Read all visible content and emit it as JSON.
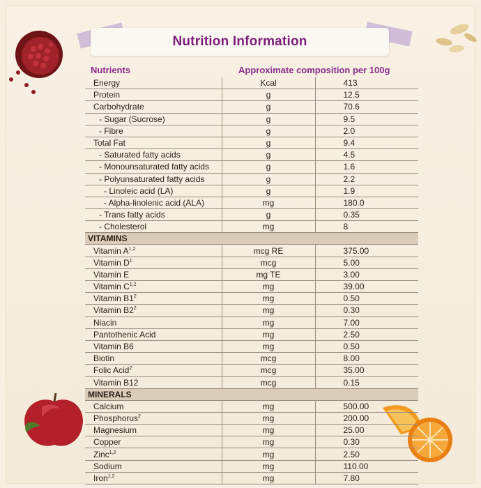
{
  "title": "Nutrition Information",
  "headers": {
    "nutrients": "Nutrients",
    "approx": "Approximate composition per 100g"
  },
  "rows": [
    {
      "name": "Energy",
      "sup": "",
      "unit": "Kcal",
      "value": "413",
      "indent": 0
    },
    {
      "name": "Protein",
      "sup": "",
      "unit": "g",
      "value": "12.5",
      "indent": 0
    },
    {
      "name": "Carbohydrate",
      "sup": "",
      "unit": "g",
      "value": "70.6",
      "indent": 0
    },
    {
      "name": "- Sugar (Sucrose)",
      "sup": "",
      "unit": "g",
      "value": "9.5",
      "indent": 1
    },
    {
      "name": "- Fibre",
      "sup": "",
      "unit": "g",
      "value": "2.0",
      "indent": 1
    },
    {
      "name": "Total Fat",
      "sup": "",
      "unit": "g",
      "value": "9.4",
      "indent": 0
    },
    {
      "name": "- Saturated fatty acids",
      "sup": "",
      "unit": "g",
      "value": "4.5",
      "indent": 1
    },
    {
      "name": "- Monounsaturated fatty acids",
      "sup": "",
      "unit": "g",
      "value": "1.6",
      "indent": 1
    },
    {
      "name": "- Polyunsaturated fatty acids",
      "sup": "",
      "unit": "g",
      "value": "2.2",
      "indent": 1
    },
    {
      "name": "- Linoleic acid (LA)",
      "sup": "",
      "unit": "g",
      "value": "1.9",
      "indent": 2
    },
    {
      "name": "- Alpha-linolenic acid (ALA)",
      "sup": "",
      "unit": "mg",
      "value": "180.0",
      "indent": 2
    },
    {
      "name": "- Trans fatty acids",
      "sup": "",
      "unit": "g",
      "value": "0.35",
      "indent": 1
    },
    {
      "name": "- Cholesterol",
      "sup": "",
      "unit": "mg",
      "value": "8",
      "indent": 1
    },
    {
      "section": "VITAMINS"
    },
    {
      "name": "Vitamin A",
      "sup": "1,2",
      "unit": "mcg RE",
      "value": "375.00",
      "indent": 0
    },
    {
      "name": "Vitamin D",
      "sup": "1",
      "unit": "mcg",
      "value": "5.00",
      "indent": 0
    },
    {
      "name": "Vitamin E",
      "sup": "",
      "unit": "mg TE",
      "value": "3.00",
      "indent": 0
    },
    {
      "name": "Vitamin C",
      "sup": "1,2",
      "unit": "mg",
      "value": "39.00",
      "indent": 0
    },
    {
      "name": "Vitamin B1",
      "sup": "2",
      "unit": "mg",
      "value": "0.50",
      "indent": 0
    },
    {
      "name": "Vitamin B2",
      "sup": "2",
      "unit": "mg",
      "value": "0.30",
      "indent": 0
    },
    {
      "name": "Niacin",
      "sup": "",
      "unit": "mg",
      "value": "7.00",
      "indent": 0
    },
    {
      "name": "Pantothenic Acid",
      "sup": "",
      "unit": "mg",
      "value": "2.50",
      "indent": 0
    },
    {
      "name": "Vitamin B6",
      "sup": "",
      "unit": "mg",
      "value": "0.50",
      "indent": 0
    },
    {
      "name": "Biotin",
      "sup": "",
      "unit": "mcg",
      "value": "8.00",
      "indent": 0
    },
    {
      "name": "Folic Acid",
      "sup": "2",
      "unit": "mcg",
      "value": "35.00",
      "indent": 0
    },
    {
      "name": "Vitamin B12",
      "sup": "",
      "unit": "mcg",
      "value": "0.15",
      "indent": 0
    },
    {
      "section": "MINERALS"
    },
    {
      "name": "Calcium",
      "sup": "",
      "unit": "mg",
      "value": "500.00",
      "indent": 0
    },
    {
      "name": "Phosphorus",
      "sup": "2",
      "unit": "mg",
      "value": "200.00",
      "indent": 0
    },
    {
      "name": "Magnesium",
      "sup": "",
      "unit": "mg",
      "value": "25.00",
      "indent": 0
    },
    {
      "name": "Copper",
      "sup": "",
      "unit": "mg",
      "value": "0.30",
      "indent": 0
    },
    {
      "name": "Zinc",
      "sup": "1,2",
      "unit": "mg",
      "value": "2.50",
      "indent": 0
    },
    {
      "name": "Sodium",
      "sup": "",
      "unit": "mg",
      "value": "110.00",
      "indent": 0
    },
    {
      "name": "Iron",
      "sup": "1,2",
      "unit": "mg",
      "value": "7.80",
      "indent": 0
    }
  ],
  "decorations": [
    "pomegranate-image",
    "oats-image",
    "apple-image",
    "orange-image"
  ],
  "colors": {
    "title": "#7b1e7a",
    "header": "#8a2a8a",
    "section_bg": "#d9ccb8",
    "tape": "#b096cd"
  }
}
